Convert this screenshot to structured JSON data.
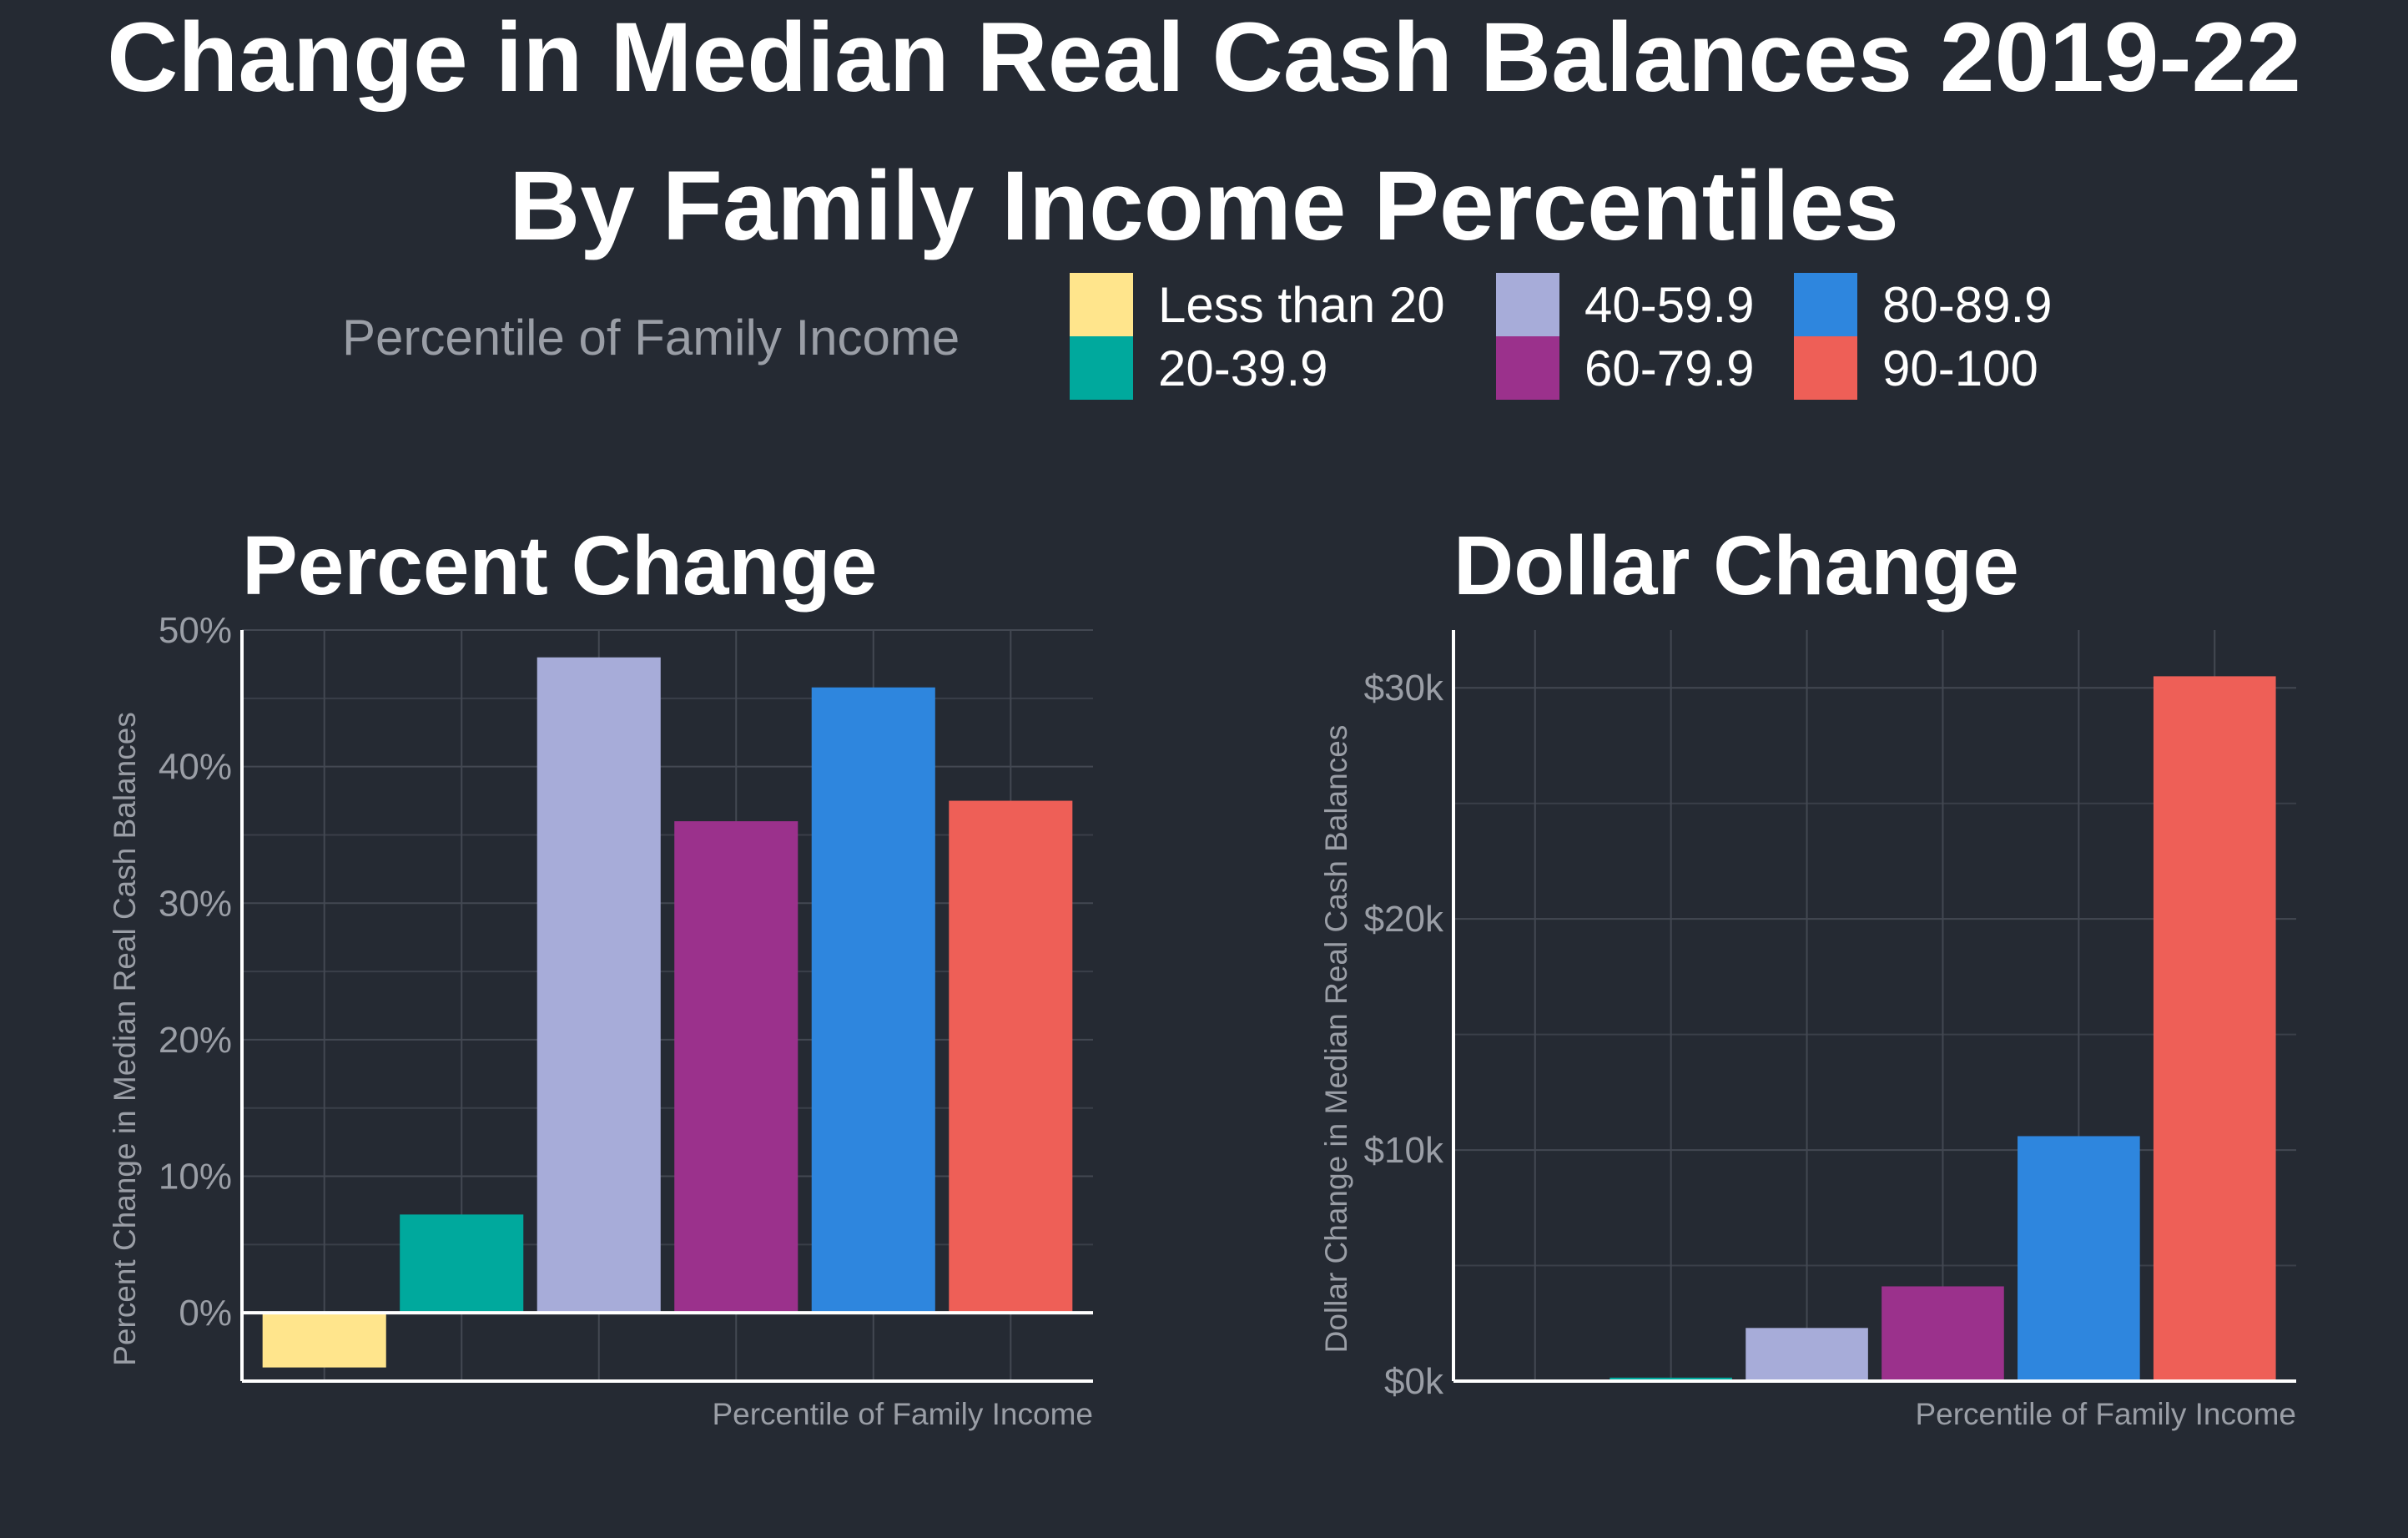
{
  "title_line1": "Change in Median Real Cash Balances 2019-22",
  "title_line2": "By Family Income Percentiles",
  "legend": {
    "title": "Percentile of Family Income",
    "items": [
      {
        "label": "Less than 20",
        "color": "#FFE58C"
      },
      {
        "label": "20-39.9",
        "color": "#00A99D"
      },
      {
        "label": "40-59.9",
        "color": "#A7ACD9"
      },
      {
        "label": "60-79.9",
        "color": "#9B318C"
      },
      {
        "label": "80-89.9",
        "color": "#2E86DE"
      },
      {
        "label": "90-100",
        "color": "#EE5F57"
      }
    ]
  },
  "chart_data": [
    {
      "type": "bar",
      "title": "Percent Change",
      "xlabel": "Percentile of Family Income",
      "ylabel": "Percent Change in Median Real Cash Balances",
      "categories": [
        "Less than 20",
        "20-39.9",
        "40-59.9",
        "60-79.9",
        "80-89.9",
        "90-100"
      ],
      "values": [
        -4,
        7.2,
        48,
        36,
        45.8,
        37.5
      ],
      "unit": "%",
      "ylim": [
        -5,
        50
      ],
      "yticks": [
        0,
        10,
        20,
        30,
        40,
        50
      ],
      "ytick_labels": [
        "0%",
        "10%",
        "20%",
        "30%",
        "40%",
        "50%"
      ],
      "grid": true
    },
    {
      "type": "bar",
      "title": "Dollar Change",
      "xlabel": "Percentile of Family Income",
      "ylabel": "Dollar Change in Median Real Cash Balances",
      "categories": [
        "Less than 20",
        "20-39.9",
        "40-59.9",
        "60-79.9",
        "80-89.9",
        "90-100"
      ],
      "values": [
        0,
        150,
        2300,
        4100,
        10600,
        30500
      ],
      "unit": "USD",
      "ylim": [
        0,
        32500
      ],
      "yticks": [
        0,
        10000,
        20000,
        30000
      ],
      "ytick_labels": [
        "$0k",
        "$10k",
        "$20k",
        "$30k"
      ],
      "grid": true
    }
  ]
}
